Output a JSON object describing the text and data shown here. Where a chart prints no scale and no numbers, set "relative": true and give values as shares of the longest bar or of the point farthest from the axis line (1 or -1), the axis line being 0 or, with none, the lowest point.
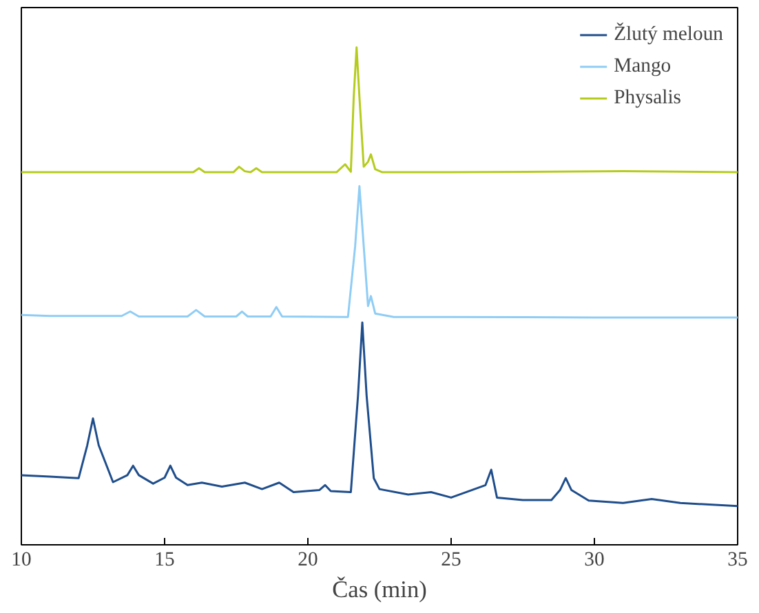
{
  "chart_data": {
    "type": "line",
    "relative": true,
    "xlabel": "Čas (min)",
    "xlim": [
      10,
      35
    ],
    "xticks": [
      10,
      15,
      20,
      25,
      30,
      35
    ],
    "grid": false,
    "legend": "top right",
    "line_style": "solid",
    "marker": "none",
    "series": [
      {
        "name": "Žlutý meloun",
        "color": "#1f4e8c",
        "x": [
          10,
          11,
          12,
          12.3,
          12.5,
          12.7,
          13.2,
          13.7,
          13.9,
          14.1,
          14.6,
          15.0,
          15.2,
          15.4,
          15.8,
          16.3,
          17.0,
          17.8,
          18.4,
          19.0,
          19.5,
          20.4,
          20.6,
          20.8,
          21.5,
          21.75,
          21.9,
          22.05,
          22.3,
          22.5,
          23.5,
          24.3,
          25,
          26.2,
          26.4,
          26.6,
          27.5,
          28.5,
          28.8,
          29.0,
          29.2,
          29.8,
          31,
          32,
          33,
          35
        ],
        "values": [
          0.14,
          0.137,
          0.134,
          0.2,
          0.254,
          0.2,
          0.126,
          0.14,
          0.159,
          0.14,
          0.123,
          0.135,
          0.159,
          0.135,
          0.12,
          0.125,
          0.117,
          0.125,
          0.112,
          0.125,
          0.106,
          0.11,
          0.12,
          0.108,
          0.106,
          0.3,
          0.447,
          0.3,
          0.134,
          0.112,
          0.101,
          0.106,
          0.095,
          0.12,
          0.151,
          0.095,
          0.09,
          0.09,
          0.11,
          0.134,
          0.11,
          0.089,
          0.084,
          0.092,
          0.084,
          0.078
        ]
      },
      {
        "name": "Mango",
        "color": "#8fcdf5",
        "x": [
          10,
          11,
          13.5,
          13.8,
          14.1,
          15.8,
          16.1,
          16.4,
          17.5,
          17.7,
          17.9,
          18.7,
          18.9,
          19.1,
          21.4,
          21.65,
          21.8,
          21.95,
          22.1,
          22.2,
          22.35,
          23,
          25,
          30,
          35
        ],
        "values": [
          0.462,
          0.46,
          0.46,
          0.469,
          0.459,
          0.459,
          0.472,
          0.459,
          0.459,
          0.469,
          0.459,
          0.459,
          0.478,
          0.459,
          0.458,
          0.6,
          0.721,
          0.6,
          0.48,
          0.5,
          0.465,
          0.458,
          0.458,
          0.457,
          0.457
        ]
      },
      {
        "name": "Physalis",
        "color": "#b5cc1e",
        "x": [
          10,
          15,
          16,
          16.2,
          16.4,
          17.4,
          17.6,
          17.8,
          18.0,
          18.2,
          18.4,
          21.0,
          21.3,
          21.5,
          21.6,
          21.7,
          21.8,
          21.95,
          22.1,
          22.2,
          22.35,
          22.6,
          25,
          31,
          35
        ],
        "values": [
          0.749,
          0.749,
          0.749,
          0.757,
          0.749,
          0.749,
          0.76,
          0.751,
          0.749,
          0.757,
          0.749,
          0.749,
          0.765,
          0.75,
          0.9,
          1.0,
          0.9,
          0.76,
          0.77,
          0.785,
          0.755,
          0.749,
          0.749,
          0.751,
          0.749
        ]
      }
    ]
  }
}
